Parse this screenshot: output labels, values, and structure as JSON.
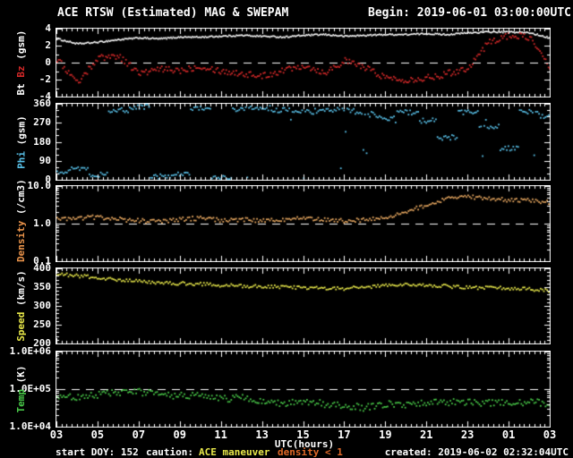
{
  "header": {
    "title": "ACE RTSW (Estimated) MAG & SWEPAM",
    "begin": "Begin: 2019-06-01 03:00:00UTC"
  },
  "footer": {
    "start_doy": "start DOY: 152",
    "caution_label": "caution:",
    "caution_maneuver": "ACE maneuver",
    "caution_density": "density < 1",
    "created": "created: 2019-06-02 02:32:04UTC"
  },
  "colors": {
    "background": "#000000",
    "frame": "#ffffff",
    "bt": "#ffffff",
    "bz": "#d22828",
    "phi": "#58c0e8",
    "density": "#e8a860",
    "speed": "#e8e84a",
    "temp": "#48c848",
    "caution_maneuver": "#e8e84a",
    "caution_density": "#e06828"
  },
  "chart_data": {
    "type": "scatter",
    "title": "ACE RTSW (Estimated) MAG & SWEPAM",
    "x_label": "UTC(hours)",
    "x_ticks": [
      "03",
      "05",
      "07",
      "09",
      "11",
      "13",
      "15",
      "17",
      "19",
      "21",
      "23",
      "01",
      "03"
    ],
    "x_hours_range": [
      3,
      27
    ],
    "grid": false,
    "panels": [
      {
        "name": "mag",
        "ylabel_parts": [
          {
            "text": "Bt ",
            "color": "#ffffff"
          },
          {
            "text": "Bz",
            "color": "#d22828"
          },
          {
            "text": " (gsm)",
            "color": "#ffffff"
          }
        ],
        "yscale": "linear",
        "ylim": [
          -4,
          4
        ],
        "ytick_labels": [
          "4",
          "2",
          "0",
          "-2",
          "-4"
        ],
        "ytick_values": [
          4,
          2,
          0,
          -2,
          -4
        ],
        "yminor": 1,
        "dash_y": 0,
        "series": [
          {
            "name": "Bt",
            "color": "#ffffff",
            "step": 1.2,
            "jitter": 0.09,
            "size": 1.6,
            "values": [
              2.8,
              2.2,
              2.4,
              2.7,
              2.9,
              2.8,
              3.0,
              3.0,
              3.1,
              3.2,
              3.1,
              3.0,
              3.2,
              3.3,
              3.1,
              3.2,
              3.3,
              3.3,
              3.4,
              3.3,
              3.5,
              3.6,
              3.6,
              3.5,
              2.9
            ]
          },
          {
            "name": "Bz",
            "color": "#d22828",
            "step": 1.6,
            "jitter": 0.38,
            "size": 1.8,
            "values": [
              0.4,
              -2.4,
              0.6,
              0.8,
              -1.3,
              -0.8,
              -0.9,
              -0.4,
              -1.0,
              -1.3,
              -1.6,
              -0.9,
              -0.3,
              -1.2,
              0.2,
              -0.6,
              -1.8,
              -2.0,
              -1.8,
              -1.3,
              -0.6,
              2.4,
              3.2,
              3.0,
              -0.8
            ]
          }
        ]
      },
      {
        "name": "phi",
        "ylabel_parts": [
          {
            "text": "Phi",
            "color": "#58c0e8"
          },
          {
            "text": " (gsm)",
            "color": "#ffffff"
          }
        ],
        "yscale": "linear",
        "ylim": [
          0,
          360
        ],
        "ytick_labels": [
          "360",
          "270",
          "180",
          "90",
          "0"
        ],
        "ytick_values": [
          360,
          270,
          180,
          90,
          0
        ],
        "yminor": 30,
        "dash_y": null,
        "series": [
          {
            "name": "Phi",
            "color": "#58c0e8",
            "step": 1.8,
            "jitter": 12,
            "size": 1.8,
            "interp": "nearest",
            "outlier": 0.07,
            "outlier_after": 12,
            "values": [
              40,
              55,
              25,
              330,
              345,
              15,
              25,
              340,
              10,
              335,
              340,
              330,
              320,
              325,
              330,
              310,
              290,
              320,
              280,
              200,
              320,
              250,
              150,
              320,
              300
            ]
          }
        ]
      },
      {
        "name": "density",
        "ylabel_parts": [
          {
            "text": "Density",
            "color": "#e8924a"
          },
          {
            "text": " (/cm3)",
            "color": "#ffffff"
          }
        ],
        "yscale": "log",
        "ylim": [
          0.1,
          10
        ],
        "ytick_labels": [
          "10.0",
          "1.0",
          "0.1"
        ],
        "ytick_values": [
          10,
          1,
          0.1
        ],
        "dash_y": 1,
        "series": [
          {
            "name": "Density",
            "color": "#e8a860",
            "step": 1.8,
            "jitter": 0.13,
            "logjitter": true,
            "size": 1.8,
            "values": [
              1.3,
              1.4,
              1.5,
              1.3,
              1.2,
              1.1,
              1.3,
              1.4,
              1.2,
              1.3,
              1.2,
              1.3,
              1.35,
              1.3,
              1.2,
              1.25,
              1.5,
              2.0,
              3.2,
              4.5,
              5.2,
              4.6,
              4.3,
              4.1,
              3.6
            ]
          }
        ]
      },
      {
        "name": "speed",
        "ylabel_parts": [
          {
            "text": "Speed",
            "color": "#e8e84a"
          },
          {
            "text": " (km/s)",
            "color": "#ffffff"
          }
        ],
        "yscale": "linear",
        "ylim": [
          200,
          400
        ],
        "ytick_labels": [
          "400",
          "350",
          "300",
          "250",
          "200"
        ],
        "ytick_values": [
          400,
          350,
          300,
          250,
          200
        ],
        "yminor": 10,
        "dash_y": null,
        "series": [
          {
            "name": "Speed",
            "color": "#e8e84a",
            "step": 1.8,
            "jitter": 4.5,
            "size": 1.8,
            "values": [
              385,
              380,
              375,
              370,
              366,
              362,
              360,
              358,
              355,
              353,
              352,
              350,
              348,
              347,
              346,
              350,
              354,
              357,
              356,
              352,
              349,
              348,
              347,
              345,
              340
            ]
          }
        ]
      },
      {
        "name": "temp",
        "ylabel_parts": [
          {
            "text": "Temp",
            "color": "#48c848"
          },
          {
            "text": " (K)",
            "color": "#ffffff"
          }
        ],
        "yscale": "log",
        "ylim": [
          10000,
          1000000
        ],
        "ytick_labels": [
          "1.0E+06",
          "1.0E+05",
          "1.0E+04"
        ],
        "ytick_values": [
          1000000,
          100000,
          10000
        ],
        "dash_y": 100000,
        "series": [
          {
            "name": "Temp",
            "color": "#48c848",
            "step": 1.8,
            "jitter": 0.22,
            "logjitter": true,
            "size": 1.8,
            "values": [
              70000,
              62000,
              70000,
              80000,
              85000,
              75000,
              65000,
              68000,
              55000,
              58000,
              48000,
              42000,
              50000,
              40000,
              36000,
              32000,
              40000,
              37000,
              42000,
              45000,
              46000,
              42000,
              44000,
              46000,
              42000
            ]
          }
        ]
      }
    ]
  }
}
